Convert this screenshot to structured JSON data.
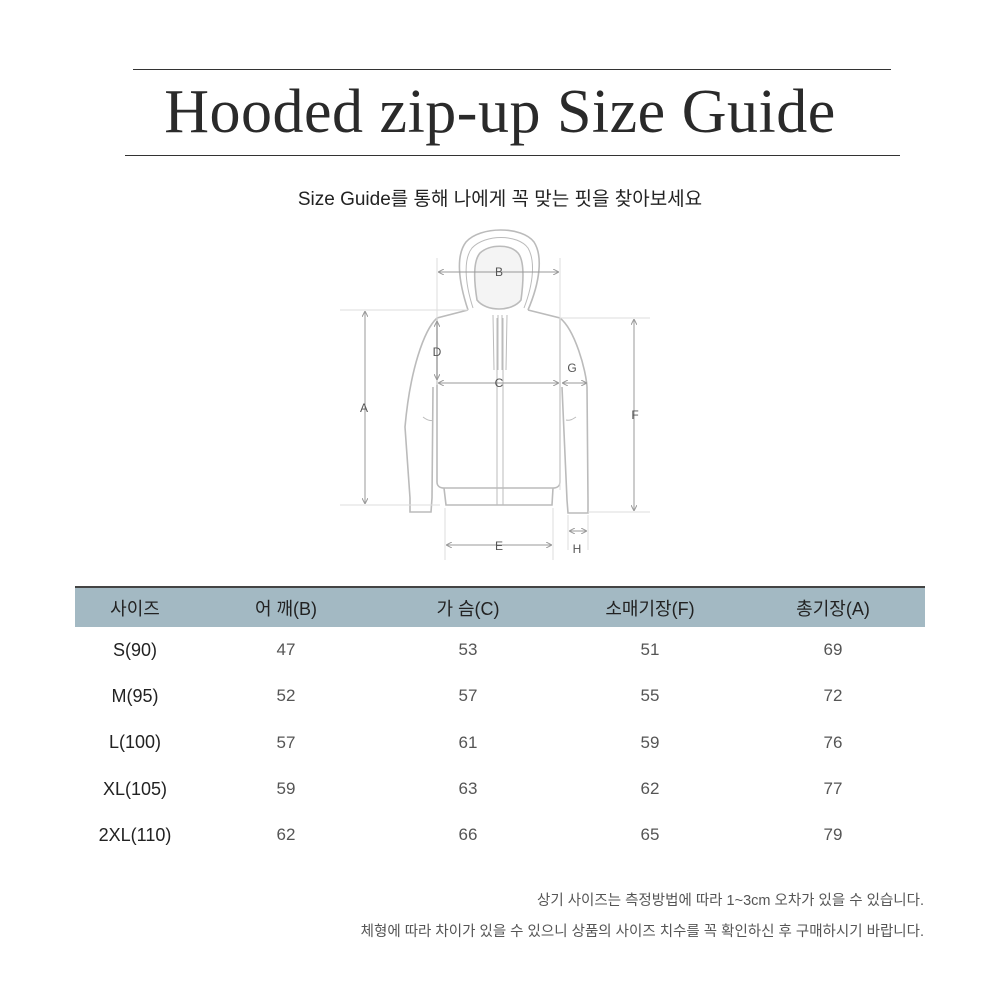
{
  "title": "Hooded zip-up Size Guide",
  "subtitle": "Size Guide를 통해 나에게 꼭 맞는 핏을 찾아보세요",
  "diagram": {
    "labels": {
      "A": "A",
      "B": "B",
      "C": "C",
      "D": "D",
      "E": "E",
      "F": "F",
      "G": "G",
      "H": "H"
    }
  },
  "table": {
    "header_color": "#a3b9c3",
    "columns": [
      "사이즈",
      "어 깨(B)",
      "가 슴(C)",
      "소매기장(F)",
      "총기장(A)"
    ],
    "rows": [
      [
        "S(90)",
        "47",
        "53",
        "51",
        "69"
      ],
      [
        "M(95)",
        "52",
        "57",
        "55",
        "72"
      ],
      [
        "L(100)",
        "57",
        "61",
        "59",
        "76"
      ],
      [
        "XL(105)",
        "59",
        "63",
        "62",
        "77"
      ],
      [
        "2XL(110)",
        "62",
        "66",
        "65",
        "79"
      ]
    ]
  },
  "notes": [
    "상기 사이즈는 측정방법에 따라 1~3cm 오차가 있을 수 있습니다.",
    "체형에 따라 차이가 있을 수 있으니 상품의 사이즈 치수를 꼭 확인하신 후 구매하시기 바랍니다."
  ]
}
